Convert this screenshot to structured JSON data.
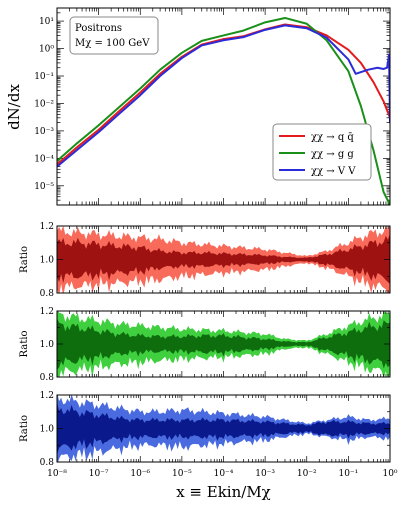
{
  "chart_data": [
    {
      "type": "line",
      "panel": "main",
      "xscale": "log",
      "yscale": "log",
      "xlim": [
        1e-08,
        1
      ],
      "ylim": [
        2e-06,
        30
      ],
      "ylabel": "dN/dx",
      "annotation": {
        "line1": "Positrons",
        "line2": "Mχ = 100 GeV"
      },
      "legend_position": "lower-right",
      "ytick_labels": [
        "10⁻⁵",
        "10⁻⁴",
        "10⁻³",
        "10⁻²",
        "10⁻¹",
        "10⁰",
        "10¹"
      ],
      "series": [
        {
          "name": "χχ → q q̄",
          "color": "#e41a1c",
          "x": [
            1e-08,
            3e-08,
            1e-07,
            3e-07,
            1e-06,
            3e-06,
            1e-05,
            3e-05,
            0.0001,
            0.0003,
            0.001,
            0.003,
            0.01,
            0.03,
            0.1,
            0.2,
            0.4,
            0.7,
            1.0
          ],
          "y": [
            6e-05,
            0.00025,
            0.0011,
            0.005,
            0.025,
            0.12,
            0.5,
            1.4,
            2.2,
            2.8,
            5.0,
            7.5,
            6.0,
            3.0,
            0.9,
            0.3,
            0.06,
            0.012,
            0.003
          ]
        },
        {
          "name": "χχ → g g",
          "color": "#1a8f1a",
          "x": [
            1e-08,
            3e-08,
            1e-07,
            3e-07,
            1e-06,
            3e-06,
            1e-05,
            3e-05,
            0.0001,
            0.0003,
            0.001,
            0.003,
            0.01,
            0.03,
            0.1,
            0.2,
            0.4,
            0.7,
            1.0
          ],
          "y": [
            8e-05,
            0.00035,
            0.0016,
            0.007,
            0.035,
            0.17,
            0.7,
            1.9,
            3.0,
            4.5,
            9.0,
            13.0,
            8.0,
            2.0,
            0.15,
            0.008,
            0.0002,
            6e-06,
            2e-06
          ]
        },
        {
          "name": "χχ → V V",
          "color": "#2b2bd9",
          "x": [
            1e-08,
            3e-08,
            1e-07,
            3e-07,
            1e-06,
            3e-06,
            1e-05,
            3e-05,
            0.0001,
            0.0003,
            0.001,
            0.003,
            0.01,
            0.03,
            0.1,
            0.15,
            0.3,
            0.5,
            0.7,
            0.85,
            0.95,
            1.0
          ],
          "y": [
            5e-05,
            0.0002,
            0.0009,
            0.004,
            0.02,
            0.1,
            0.45,
            1.3,
            2.0,
            2.6,
            4.8,
            7.0,
            5.5,
            2.5,
            0.4,
            0.12,
            0.17,
            0.2,
            0.18,
            0.2,
            0.6,
            0.002
          ]
        }
      ]
    },
    {
      "type": "area",
      "panel": "ratio-qq",
      "series_name": "χχ → q q̄",
      "ylabel": "Ratio",
      "ylim": [
        0.8,
        1.2
      ],
      "ytick_labels": [
        "0.8",
        "1.0",
        "1.2"
      ],
      "outer_color": "#f86a5a",
      "inner_color": "#9e1212",
      "x": [
        1e-08,
        3e-08,
        1e-07,
        3e-07,
        1e-06,
        3e-06,
        1e-05,
        3e-05,
        0.0001,
        0.0003,
        0.001,
        0.003,
        0.01,
        0.03,
        0.1,
        0.3,
        1.0
      ],
      "outer": [
        0.17,
        0.16,
        0.15,
        0.14,
        0.13,
        0.12,
        0.1,
        0.09,
        0.08,
        0.07,
        0.06,
        0.04,
        0.02,
        0.05,
        0.1,
        0.15,
        0.18
      ],
      "inner": [
        0.1,
        0.1,
        0.09,
        0.08,
        0.07,
        0.05,
        0.04,
        0.04,
        0.035,
        0.03,
        0.025,
        0.015,
        0.01,
        0.03,
        0.06,
        0.09,
        0.12
      ]
    },
    {
      "type": "area",
      "panel": "ratio-gg",
      "series_name": "χχ → g g",
      "ylabel": "Ratio",
      "ylim": [
        0.8,
        1.2
      ],
      "ytick_labels": [
        "0.8",
        "1.0",
        "1.2"
      ],
      "outer_color": "#3fcf3f",
      "inner_color": "#0e6e0e",
      "x": [
        1e-08,
        3e-08,
        1e-07,
        3e-07,
        1e-06,
        3e-06,
        1e-05,
        3e-05,
        0.0001,
        0.0003,
        0.001,
        0.003,
        0.01,
        0.03,
        0.1,
        0.3,
        1.0
      ],
      "outer": [
        0.18,
        0.16,
        0.14,
        0.12,
        0.11,
        0.1,
        0.09,
        0.085,
        0.08,
        0.07,
        0.06,
        0.03,
        0.02,
        0.06,
        0.11,
        0.15,
        0.18
      ],
      "inner": [
        0.12,
        0.1,
        0.08,
        0.06,
        0.05,
        0.045,
        0.045,
        0.05,
        0.05,
        0.04,
        0.03,
        0.015,
        0.01,
        0.04,
        0.07,
        0.1,
        0.12
      ]
    },
    {
      "type": "area",
      "panel": "ratio-vv",
      "series_name": "χχ → V V",
      "ylabel": "Ratio",
      "ylim": [
        0.8,
        1.2
      ],
      "ytick_labels": [
        "0.8",
        "1.0",
        "1.2"
      ],
      "xlabel": "x ≡ Ekin/Mχ",
      "xtick_labels": [
        "10⁻⁸",
        "10⁻⁷",
        "10⁻⁶",
        "10⁻⁵",
        "10⁻⁴",
        "10⁻³",
        "10⁻²",
        "10⁻¹",
        "10⁰"
      ],
      "outer_color": "#4a6be0",
      "inner_color": "#0a1a8c",
      "x": [
        1e-08,
        3e-08,
        1e-07,
        3e-07,
        1e-06,
        3e-06,
        1e-05,
        3e-05,
        0.0001,
        0.0003,
        0.001,
        0.003,
        0.01,
        0.03,
        0.1,
        0.3,
        1.0
      ],
      "outer": [
        0.18,
        0.16,
        0.14,
        0.12,
        0.1,
        0.1,
        0.11,
        0.1,
        0.09,
        0.08,
        0.07,
        0.05,
        0.03,
        0.05,
        0.07,
        0.05,
        0.06
      ],
      "inner": [
        0.12,
        0.1,
        0.08,
        0.06,
        0.05,
        0.05,
        0.05,
        0.05,
        0.05,
        0.045,
        0.04,
        0.03,
        0.02,
        0.04,
        0.04,
        0.03,
        0.03
      ]
    }
  ]
}
